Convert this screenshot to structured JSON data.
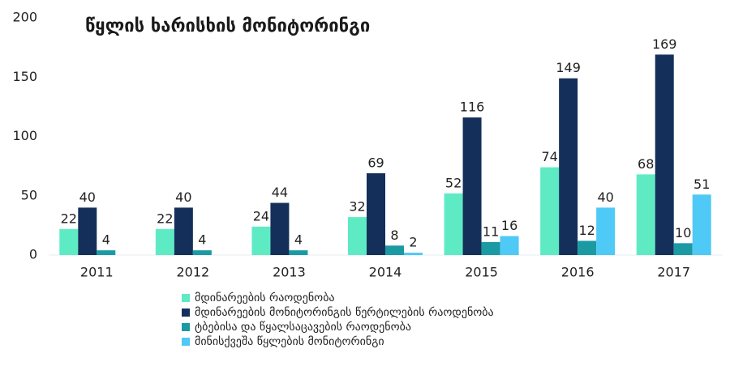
{
  "chart_data": {
    "type": "bar",
    "title": "წყლის ხარისხის მონიტორინგი",
    "categories": [
      "2011",
      "2012",
      "2013",
      "2014",
      "2015",
      "2016",
      "2017"
    ],
    "series": [
      {
        "name": "მდინარეების რაოდენობა",
        "color": "#5eebc4",
        "values": [
          22,
          22,
          24,
          32,
          52,
          74,
          68
        ]
      },
      {
        "name": "მდინარეების მონიტორინგის წერტილების რაოდენობა",
        "color": "#14305a",
        "values": [
          40,
          40,
          44,
          69,
          116,
          149,
          169
        ]
      },
      {
        "name": "ტბებისა და წყალსაცავების რაოდენობა",
        "color": "#1b9aa3",
        "values": [
          4,
          4,
          4,
          8,
          11,
          12,
          10
        ]
      },
      {
        "name": "მინისქვეშა წყლების მონიტორინგი",
        "color": "#4fc9f5",
        "values": [
          null,
          null,
          null,
          2,
          16,
          40,
          51
        ]
      }
    ],
    "ylim": [
      0,
      200
    ],
    "yticks": [
      0,
      50,
      100,
      150,
      200
    ],
    "grid": false,
    "legend": "bottom"
  }
}
